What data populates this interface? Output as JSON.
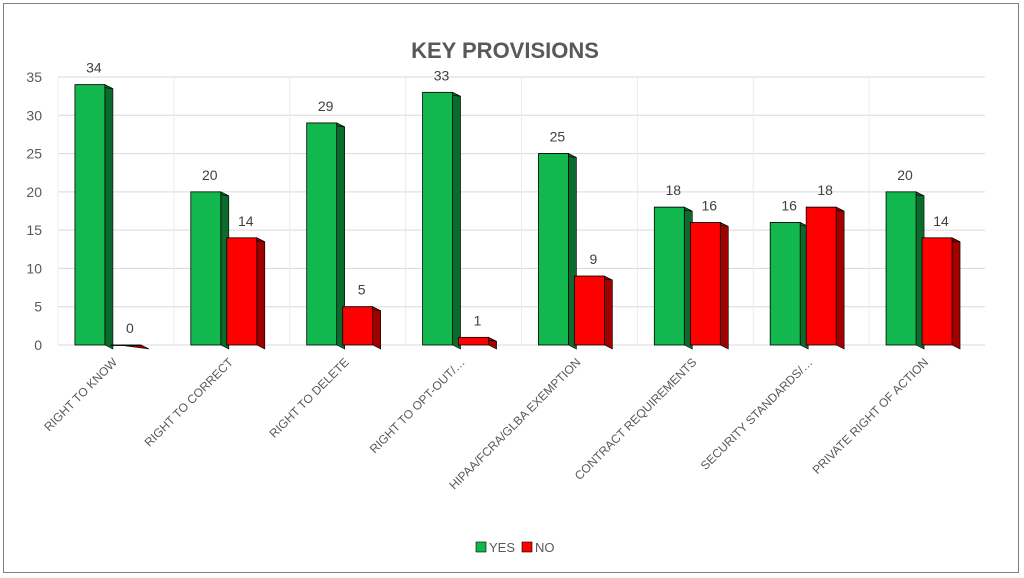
{
  "chart_data": {
    "type": "bar",
    "title": "KEY PROVISIONS",
    "xlabel": "",
    "ylabel": "",
    "ylim": [
      0,
      35
    ],
    "yticks": [
      0,
      5,
      10,
      15,
      20,
      25,
      30,
      35
    ],
    "grid": true,
    "legend_position": "bottom",
    "style": "3d-clustered-column",
    "categories": [
      "RIGHT TO KNOW",
      "RIGHT TO CORRECT",
      "RIGHT TO DELETE",
      "RIGHT TO OPT-OUT/…",
      "HIPAA/FCRA/GLBA EXEMPTION",
      "CONTRACT REQUIREMENTS",
      "SECURITY STANDARDS/…",
      "PRIVATE RIGHT OF ACTION"
    ],
    "series": [
      {
        "name": "YES",
        "color": "#12b84d",
        "side_color": "#0b6b2d",
        "values": [
          34,
          20,
          29,
          33,
          25,
          18,
          16,
          20
        ]
      },
      {
        "name": "NO",
        "color": "#ff0000",
        "side_color": "#a00000",
        "values": [
          0,
          14,
          5,
          1,
          9,
          16,
          18,
          14
        ]
      }
    ]
  }
}
